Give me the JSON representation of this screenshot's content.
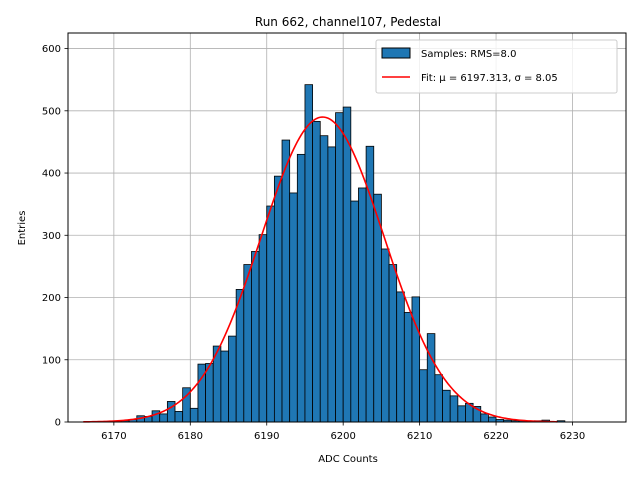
{
  "chart_data": {
    "type": "bar",
    "title": "Run 662, channel107, Pedestal",
    "xlabel": "ADC Counts",
    "ylabel": "Entries",
    "xlim": [
      6164,
      6237
    ],
    "ylim": [
      0,
      625
    ],
    "xticks": [
      6170,
      6180,
      6190,
      6200,
      6210,
      6220,
      6230
    ],
    "yticks": [
      0,
      100,
      200,
      300,
      400,
      500,
      600
    ],
    "grid": true,
    "legend_position": "top-right",
    "bin_width": 1,
    "series": [
      {
        "name": "Samples: RMS=8.0",
        "color": "#1f77b4",
        "edge_color": "#000000",
        "bin_start": 6169,
        "values": [
          0,
          1,
          2,
          4,
          10,
          9,
          18,
          13,
          33,
          17,
          55,
          22,
          93,
          94,
          122,
          114,
          138,
          213,
          253,
          274,
          301,
          347,
          395,
          453,
          368,
          430,
          542,
          483,
          460,
          442,
          497,
          506,
          355,
          376,
          443,
          366,
          278,
          253,
          209,
          176,
          201,
          84,
          142,
          76,
          51,
          42,
          26,
          30,
          25,
          13,
          8,
          4,
          3,
          2,
          2,
          1,
          2,
          3,
          0,
          2
        ]
      },
      {
        "name": "Fit: μ = 6197.313, σ = 8.05",
        "color": "#ff0000",
        "type": "line",
        "mu": 6197.313,
        "sigma": 8.05,
        "amplitude": 490,
        "x_range": [
          6166,
          6228
        ]
      }
    ]
  }
}
